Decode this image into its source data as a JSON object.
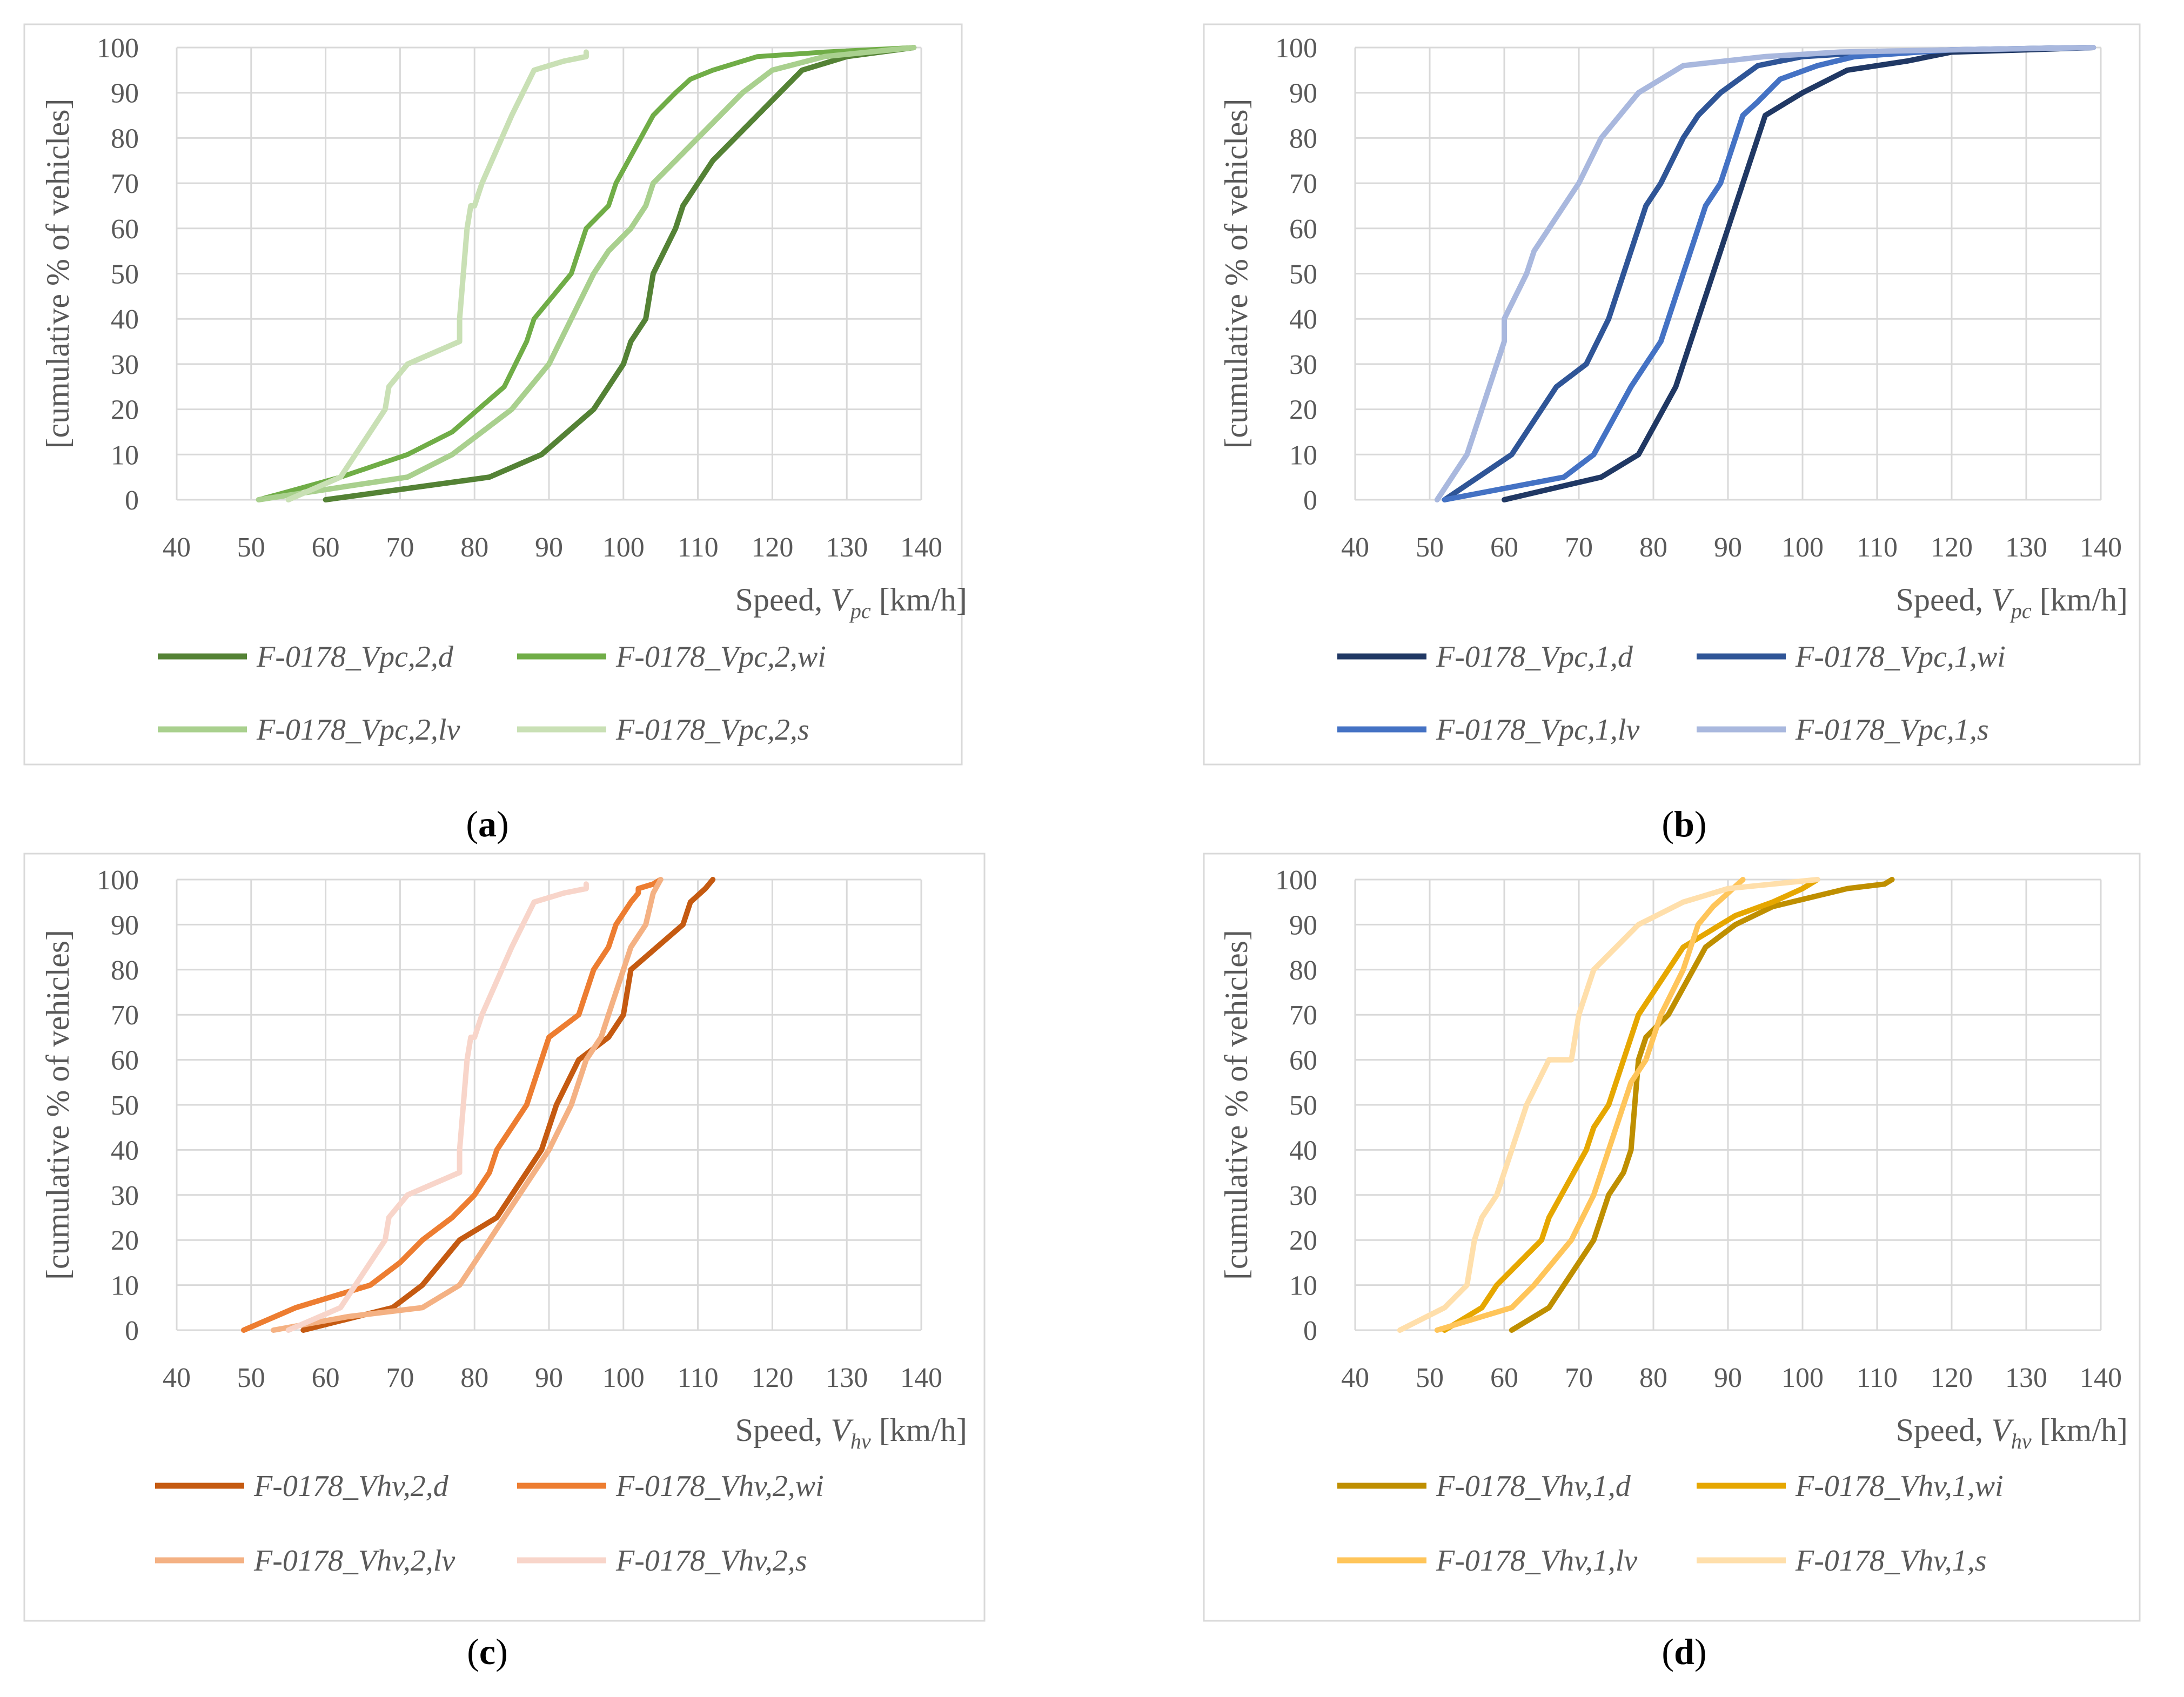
{
  "chart_data": [
    {
      "id": "a",
      "type": "line",
      "caption_letter": "a",
      "xlabel_prefix": "Speed, ",
      "xlabel_var": "V",
      "xlabel_sub": "pc",
      "xlabel_suffix": " [km/h]",
      "ylabel": "[cumulative % of vehicles]",
      "xlim": [
        40,
        140
      ],
      "ylim": [
        0,
        100
      ],
      "xticks": [
        40,
        50,
        60,
        70,
        80,
        90,
        100,
        110,
        120,
        130,
        140
      ],
      "yticks": [
        0,
        10,
        20,
        30,
        40,
        50,
        60,
        70,
        80,
        90,
        100
      ],
      "grid": true,
      "legend_position": "bottom",
      "series": [
        {
          "name": "F-0178_Vpc,2,d",
          "color": "#548235",
          "x": [
            60,
            82,
            89,
            96,
            100,
            101,
            103,
            104,
            107,
            108,
            112,
            118,
            121,
            124,
            130,
            139
          ],
          "y": [
            0,
            5,
            10,
            20,
            30,
            35,
            40,
            50,
            60,
            65,
            75,
            85,
            90,
            95,
            98,
            100
          ]
        },
        {
          "name": "F-0178_Vpc,2,wi",
          "color": "#70AD47",
          "x": [
            51,
            62,
            71,
            77,
            84,
            87,
            88,
            93,
            95,
            98,
            99,
            104,
            107,
            109,
            112,
            118,
            127,
            139
          ],
          "y": [
            0,
            5,
            10,
            15,
            25,
            35,
            40,
            50,
            60,
            65,
            70,
            85,
            90,
            93,
            95,
            98,
            99,
            100
          ],
          "width": 9
        },
        {
          "name": "F-0178_Vpc,2,lv",
          "color": "#A9D08E",
          "x": [
            51,
            71,
            77,
            85,
            90,
            93,
            96,
            98,
            101,
            103,
            104,
            110,
            116,
            120,
            127,
            139
          ],
          "y": [
            0,
            5,
            10,
            20,
            30,
            40,
            50,
            55,
            60,
            65,
            70,
            80,
            90,
            95,
            98,
            100
          ]
        },
        {
          "name": "F-0178_Vpc,2,s",
          "color": "#C9E0B5",
          "x": [
            55,
            62,
            66,
            68,
            68.5,
            71,
            78,
            78,
            79,
            79.5,
            80,
            81,
            81,
            85,
            88,
            92,
            95,
            95
          ],
          "y": [
            0,
            5,
            15,
            20,
            25,
            30,
            35,
            40,
            60,
            65,
            65,
            70,
            70,
            85,
            95,
            97,
            98,
            99
          ]
        }
      ]
    },
    {
      "id": "b",
      "type": "line",
      "caption_letter": "b",
      "xlabel_prefix": "Speed, ",
      "xlabel_var": "V",
      "xlabel_sub": "pc",
      "xlabel_suffix": " [km/h]",
      "ylabel": "[cumulative % of vehicles]",
      "xlim": [
        40,
        140
      ],
      "ylim": [
        0,
        100
      ],
      "xticks": [
        40,
        50,
        60,
        70,
        80,
        90,
        100,
        110,
        120,
        130,
        140
      ],
      "yticks": [
        0,
        10,
        20,
        30,
        40,
        50,
        60,
        70,
        80,
        90,
        100
      ],
      "grid": true,
      "legend_position": "bottom",
      "series": [
        {
          "name": "F-0178_Vpc,1,d",
          "color": "#203864",
          "x": [
            60,
            73,
            78,
            83,
            86,
            90,
            93,
            94,
            95,
            98,
            100,
            106,
            114,
            120,
            130,
            139
          ],
          "y": [
            0,
            5,
            10,
            25,
            40,
            60,
            75,
            80,
            85,
            88,
            90,
            95,
            97,
            99,
            99.5,
            100
          ]
        },
        {
          "name": "F-0178_Vpc,1,wi",
          "color": "#2F5597",
          "x": [
            52,
            61,
            65,
            67,
            71,
            74,
            76,
            77,
            79,
            81,
            84,
            86,
            89,
            94,
            100,
            110,
            120,
            138
          ],
          "y": [
            0,
            10,
            20,
            25,
            30,
            40,
            50,
            55,
            65,
            70,
            80,
            85,
            90,
            96,
            98,
            99,
            99.5,
            100
          ]
        },
        {
          "name": "F-0178_Vpc,1,lv",
          "color": "#4472C4",
          "x": [
            52,
            68,
            72,
            77,
            79,
            81,
            85,
            87,
            89,
            91,
            92,
            94,
            97,
            102,
            107,
            120,
            139
          ],
          "y": [
            0,
            5,
            10,
            25,
            30,
            35,
            55,
            65,
            70,
            80,
            85,
            88,
            93,
            96,
            98,
            99.5,
            100
          ]
        },
        {
          "name": "F-0178_Vpc,1,s",
          "color": "#A9B8DE",
          "x": [
            51,
            55,
            58,
            59,
            60,
            60,
            63,
            64,
            66,
            70,
            73,
            78,
            81,
            84,
            95,
            105,
            120,
            139
          ],
          "y": [
            0,
            10,
            25,
            30,
            35,
            40,
            50,
            55,
            60,
            70,
            80,
            90,
            93,
            96,
            98,
            99,
            99.5,
            100
          ]
        }
      ]
    },
    {
      "id": "c",
      "type": "line",
      "caption_letter": "c",
      "xlabel_prefix": "Speed, ",
      "xlabel_var": "V",
      "xlabel_sub": "hv",
      "xlabel_suffix": " [km/h]",
      "ylabel": "[cumulative % of vehicles]",
      "xlim": [
        40,
        140
      ],
      "ylim": [
        0,
        100
      ],
      "xticks": [
        40,
        50,
        60,
        70,
        80,
        90,
        100,
        110,
        120,
        130,
        140
      ],
      "yticks": [
        0,
        10,
        20,
        30,
        40,
        50,
        60,
        70,
        80,
        90,
        100
      ],
      "grid": true,
      "legend_position": "bottom",
      "series": [
        {
          "name": "F-0178_Vhv,2,d",
          "color": "#C55A11",
          "x": [
            57,
            69,
            73,
            78,
            83,
            89,
            91,
            94,
            98,
            100,
            101,
            108,
            109,
            111,
            112
          ],
          "y": [
            0,
            5,
            10,
            20,
            25,
            40,
            50,
            60,
            65,
            70,
            80,
            90,
            95,
            98,
            100
          ]
        },
        {
          "name": "F-0178_Vhv,2,wi",
          "color": "#ED7D31",
          "x": [
            49,
            56,
            62,
            66,
            70,
            73,
            77,
            80,
            82,
            83,
            87,
            89,
            90,
            94,
            95,
            96,
            98,
            99,
            101,
            102,
            102,
            104,
            105
          ],
          "y": [
            0,
            5,
            8,
            10,
            15,
            20,
            25,
            30,
            35,
            40,
            50,
            60,
            65,
            70,
            75,
            80,
            85,
            90,
            95,
            97,
            98,
            99,
            100
          ]
        },
        {
          "name": "F-0178_Vhv,2,lv",
          "color": "#F4B183",
          "x": [
            53,
            63,
            73,
            78,
            82,
            90,
            93,
            95,
            97,
            98,
            100,
            101,
            103,
            104,
            105
          ],
          "y": [
            0,
            3,
            5,
            10,
            20,
            40,
            50,
            60,
            65,
            70,
            80,
            85,
            90,
            97,
            100
          ]
        },
        {
          "name": "F-0178_Vhv,2,s",
          "color": "#F8D5CA",
          "x": [
            55,
            62,
            66,
            68,
            68.5,
            71,
            78,
            78,
            79,
            79.5,
            80,
            81,
            81,
            85,
            88,
            92,
            95,
            95
          ],
          "y": [
            0,
            5,
            15,
            20,
            25,
            30,
            35,
            40,
            60,
            65,
            65,
            70,
            70,
            85,
            95,
            97,
            98,
            99
          ]
        }
      ]
    },
    {
      "id": "d",
      "type": "line",
      "caption_letter": "d",
      "xlabel_prefix": "Speed, ",
      "xlabel_var": "V",
      "xlabel_sub": "hv",
      "xlabel_suffix": " [km/h]",
      "ylabel": "[cumulative % of vehicles]",
      "xlim": [
        40,
        140
      ],
      "ylim": [
        0,
        100
      ],
      "xticks": [
        40,
        50,
        60,
        70,
        80,
        90,
        100,
        110,
        120,
        130,
        140
      ],
      "yticks": [
        0,
        10,
        20,
        30,
        40,
        50,
        60,
        70,
        80,
        90,
        100
      ],
      "grid": true,
      "legend_position": "bottom",
      "series": [
        {
          "name": "F-0178_Vhv,1,d",
          "color": "#BF8F00",
          "x": [
            61,
            66,
            70,
            72,
            74,
            76,
            77,
            78,
            79,
            82,
            87,
            91,
            96,
            101,
            106,
            111,
            112
          ],
          "y": [
            0,
            5,
            15,
            20,
            30,
            35,
            40,
            60,
            65,
            70,
            85,
            90,
            94,
            96,
            98,
            99,
            100
          ]
        },
        {
          "name": "F-0178_Vhv,1,wi",
          "color": "#E6A700",
          "x": [
            52,
            57,
            59,
            65,
            66,
            71,
            72,
            74,
            78,
            80,
            84,
            87,
            91,
            96,
            100,
            102
          ],
          "y": [
            0,
            5,
            10,
            20,
            25,
            40,
            45,
            50,
            70,
            75,
            85,
            88,
            92,
            95,
            98,
            100
          ]
        },
        {
          "name": "F-0178_Vhv,1,lv",
          "color": "#FFC55A",
          "x": [
            51,
            61,
            64,
            69,
            72,
            74,
            77,
            79,
            81,
            84,
            86,
            88,
            90,
            92
          ],
          "y": [
            0,
            5,
            10,
            20,
            30,
            40,
            55,
            60,
            70,
            80,
            90,
            94,
            97,
            100
          ]
        },
        {
          "name": "F-0178_Vhv,1,s",
          "color": "#FFDFAB",
          "x": [
            46,
            52,
            55,
            56,
            57,
            59,
            60,
            61,
            63,
            66,
            69,
            70,
            71,
            72,
            75,
            78,
            84,
            90,
            102
          ],
          "y": [
            0,
            5,
            10,
            20,
            25,
            30,
            35,
            40,
            50,
            60,
            60,
            70,
            75,
            80,
            85,
            90,
            95,
            98,
            100
          ]
        }
      ]
    }
  ]
}
